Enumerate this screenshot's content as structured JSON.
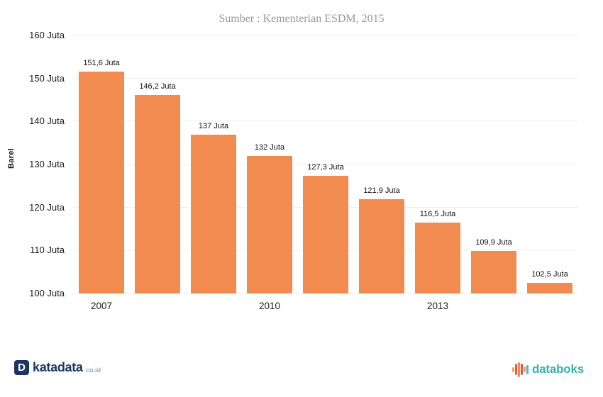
{
  "chart_data": {
    "type": "bar",
    "title": "Sumber : Kementerian ESDM, 2015",
    "xlabel": "",
    "ylabel": "Barel",
    "categories": [
      "2007",
      "2008",
      "2009",
      "2010",
      "2011",
      "2012",
      "2013",
      "2014",
      "2015"
    ],
    "values": [
      151.6,
      146.2,
      137,
      132,
      127.3,
      121.9,
      116.5,
      109.9,
      102.5
    ],
    "bar_labels": [
      "151,6 Juta",
      "146,2 Juta",
      "137 Juta",
      "132 Juta",
      "127,3 Juta",
      "121,9 Juta",
      "116,5 Juta",
      "109,9 Juta",
      "102,5 Juta"
    ],
    "x_tick_labels": [
      "2007",
      "",
      "",
      "2010",
      "",
      "",
      "2013",
      "",
      ""
    ],
    "y_ticks": [
      100,
      110,
      120,
      130,
      140,
      150,
      160
    ],
    "y_tick_labels": [
      "100 Juta",
      "110 Juta",
      "120 Juta",
      "130 Juta",
      "140 Juta",
      "150 Juta",
      "160 Juta"
    ],
    "ylim": [
      100,
      160
    ],
    "grid": true,
    "legend": false,
    "bar_color": "#F28B4F",
    "grid_color": "#EDEDED"
  },
  "footer": {
    "katadata": {
      "icon_letter": "D",
      "name": "katadata",
      "suffix": ".co.id",
      "navy": "#1C3664",
      "suffix_color": "#97A5BD"
    },
    "databoks": {
      "name": "databoks",
      "teal": "#35B0A7",
      "icon_bar_colors": [
        "#F5A05A",
        "#E2574C",
        "#F5883F",
        "#E2574C",
        "#F5A05A",
        "#4AB9C1"
      ],
      "icon_bar_heights": [
        7,
        16,
        21,
        16,
        8,
        13
      ]
    }
  }
}
